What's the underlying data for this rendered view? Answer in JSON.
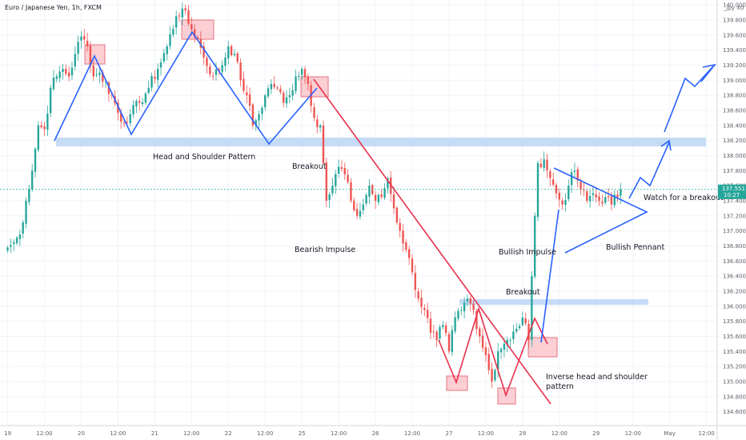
{
  "header": {
    "title": "Euro / Japanese Yen, 1h, FXCM",
    "symbol_tag": "_jpy X0"
  },
  "price_badge": {
    "price": "137.551",
    "countdown": "10:27"
  },
  "chart_data": {
    "type": "candlestick",
    "ylim": [
      134.5,
      140.15
    ],
    "y_ticks": [
      134.6,
      134.8,
      135.0,
      135.2,
      135.4,
      135.6,
      135.8,
      136.0,
      136.2,
      136.4,
      136.6,
      136.8,
      137.0,
      137.2,
      137.4,
      137.6,
      137.8,
      138.0,
      138.2,
      138.4,
      138.6,
      138.8,
      139.0,
      139.2,
      139.4,
      139.6,
      139.8,
      140.0
    ],
    "x_ticks": [
      {
        "label": "19",
        "t": 0
      },
      {
        "label": "12:00",
        "t": 12
      },
      {
        "label": "20",
        "t": 24
      },
      {
        "label": "12:00",
        "t": 36
      },
      {
        "label": "21",
        "t": 48
      },
      {
        "label": "12:00",
        "t": 60
      },
      {
        "label": "22",
        "t": 72
      },
      {
        "label": "12:00",
        "t": 84
      },
      {
        "label": "25",
        "t": 96
      },
      {
        "label": "12:00",
        "t": 108
      },
      {
        "label": "26",
        "t": 120
      },
      {
        "label": "12:00",
        "t": 132
      },
      {
        "label": "27",
        "t": 144
      },
      {
        "label": "12:00",
        "t": 156
      },
      {
        "label": "28",
        "t": 168
      },
      {
        "label": "12:00",
        "t": 180
      },
      {
        "label": "29",
        "t": 192
      },
      {
        "label": "12:00",
        "t": 204
      },
      {
        "label": "May",
        "t": 216
      },
      {
        "label": "12:00",
        "t": 228
      }
    ],
    "t_range": [
      -2.5,
      231.5
    ],
    "last_candle_t": 200,
    "current_price": 137.551,
    "anchors": [
      [
        0,
        136.78
      ],
      [
        2,
        136.85
      ],
      [
        4,
        136.95
      ],
      [
        6,
        137.4
      ],
      [
        8,
        137.8
      ],
      [
        10,
        138.4
      ],
      [
        12,
        138.35
      ],
      [
        14,
        138.9
      ],
      [
        16,
        139.05
      ],
      [
        18,
        139.15
      ],
      [
        20,
        139.05
      ],
      [
        22,
        139.35
      ],
      [
        24,
        139.58
      ],
      [
        26,
        139.45
      ],
      [
        28,
        139.05
      ],
      [
        30,
        139.1
      ],
      [
        34,
        138.8
      ],
      [
        37,
        138.45
      ],
      [
        40,
        138.55
      ],
      [
        43,
        138.7
      ],
      [
        46,
        138.9
      ],
      [
        49,
        139.15
      ],
      [
        52,
        139.45
      ],
      [
        55,
        139.85
      ],
      [
        57,
        139.95
      ],
      [
        59,
        139.75
      ],
      [
        62,
        139.55
      ],
      [
        64,
        139.3
      ],
      [
        67,
        139.05
      ],
      [
        70,
        139.2
      ],
      [
        72,
        139.45
      ],
      [
        74,
        139.35
      ],
      [
        76,
        139.0
      ],
      [
        78,
        138.8
      ],
      [
        80,
        138.4
      ],
      [
        82,
        138.55
      ],
      [
        84,
        138.8
      ],
      [
        86,
        138.95
      ],
      [
        88,
        138.9
      ],
      [
        90,
        138.7
      ],
      [
        92,
        138.8
      ],
      [
        94,
        139.05
      ],
      [
        96,
        139.15
      ],
      [
        98,
        138.95
      ],
      [
        100,
        138.5
      ],
      [
        102,
        138.4
      ],
      [
        103,
        137.9
      ],
      [
        104,
        137.4
      ],
      [
        106,
        137.6
      ],
      [
        108,
        137.85
      ],
      [
        110,
        137.75
      ],
      [
        112,
        137.4
      ],
      [
        114,
        137.2
      ],
      [
        116,
        137.35
      ],
      [
        118,
        137.6
      ],
      [
        120,
        137.4
      ],
      [
        122,
        137.45
      ],
      [
        124,
        137.7
      ],
      [
        126,
        137.3
      ],
      [
        128,
        137.0
      ],
      [
        130,
        136.75
      ],
      [
        132,
        136.45
      ],
      [
        134,
        136.1
      ],
      [
        136,
        135.95
      ],
      [
        138,
        135.65
      ],
      [
        140,
        135.55
      ],
      [
        142,
        135.75
      ],
      [
        144,
        135.4
      ],
      [
        146,
        135.85
      ],
      [
        148,
        135.95
      ],
      [
        150,
        136.1
      ],
      [
        152,
        135.95
      ],
      [
        154,
        135.6
      ],
      [
        156,
        135.35
      ],
      [
        158,
        135.0
      ],
      [
        160,
        135.4
      ],
      [
        162,
        135.5
      ],
      [
        164,
        135.55
      ],
      [
        166,
        135.7
      ],
      [
        168,
        135.85
      ],
      [
        170,
        135.55
      ],
      [
        171,
        136.4
      ],
      [
        172,
        137.2
      ],
      [
        173,
        137.9
      ],
      [
        175,
        137.95
      ],
      [
        177,
        137.7
      ],
      [
        179,
        137.5
      ],
      [
        181,
        137.35
      ],
      [
        183,
        137.6
      ],
      [
        185,
        137.8
      ],
      [
        187,
        137.55
      ],
      [
        189,
        137.4
      ],
      [
        191,
        137.5
      ],
      [
        193,
        137.4
      ],
      [
        195,
        137.45
      ],
      [
        197,
        137.35
      ],
      [
        200,
        137.551
      ]
    ]
  },
  "annotations": {
    "hs_label": "Head and Shoulder Pattern",
    "breakout_1": "Breakout",
    "bearish": "Bearish Impulse",
    "breakout_2": "Breakout",
    "bullish_impulse": "Bullish Impulse",
    "pennant": "Bullish Pennant",
    "watch": "Watch for a breakout",
    "inverse_1": "Inverse head and shoulder",
    "inverse_2": "pattern"
  },
  "colors": {
    "up": "#26a69a",
    "down": "#ef5350",
    "blue_line": "#2962ff",
    "red_line": "#e8304d",
    "zone": "#bbd5f5",
    "box": "#f7a8b0"
  }
}
